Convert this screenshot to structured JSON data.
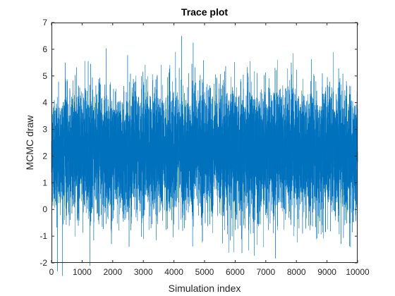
{
  "chart_data": {
    "type": "line",
    "title": "Trace plot",
    "xlabel": "Simulation index",
    "ylabel": "MCMC draw",
    "xlim": [
      0,
      10000
    ],
    "ylim": [
      -2,
      7
    ],
    "xticks": [
      0,
      1000,
      2000,
      3000,
      4000,
      5000,
      6000,
      7000,
      8000,
      9000,
      10000
    ],
    "yticks": [
      -2,
      -1,
      0,
      1,
      2,
      3,
      4,
      5,
      6,
      7
    ],
    "grid": false,
    "box": true,
    "series": [
      {
        "color": "#0072BD",
        "n_points": 10000,
        "mean": 2.2,
        "typical_range": [
          0.5,
          4.3
        ],
        "approx_extremes": [
          {
            "x": 4250,
            "y": 6.5
          },
          {
            "x": 4050,
            "y": 5.9
          },
          {
            "x": 450,
            "y": 5.5
          },
          {
            "x": 7300,
            "y": 5.3
          },
          {
            "x": 5950,
            "y": -1.6
          },
          {
            "x": 5900,
            "y": -1.0
          },
          {
            "x": 8200,
            "y": -0.9
          },
          {
            "x": 1950,
            "y": -0.8
          },
          {
            "x": 3250,
            "y": -0.7
          }
        ]
      }
    ]
  }
}
